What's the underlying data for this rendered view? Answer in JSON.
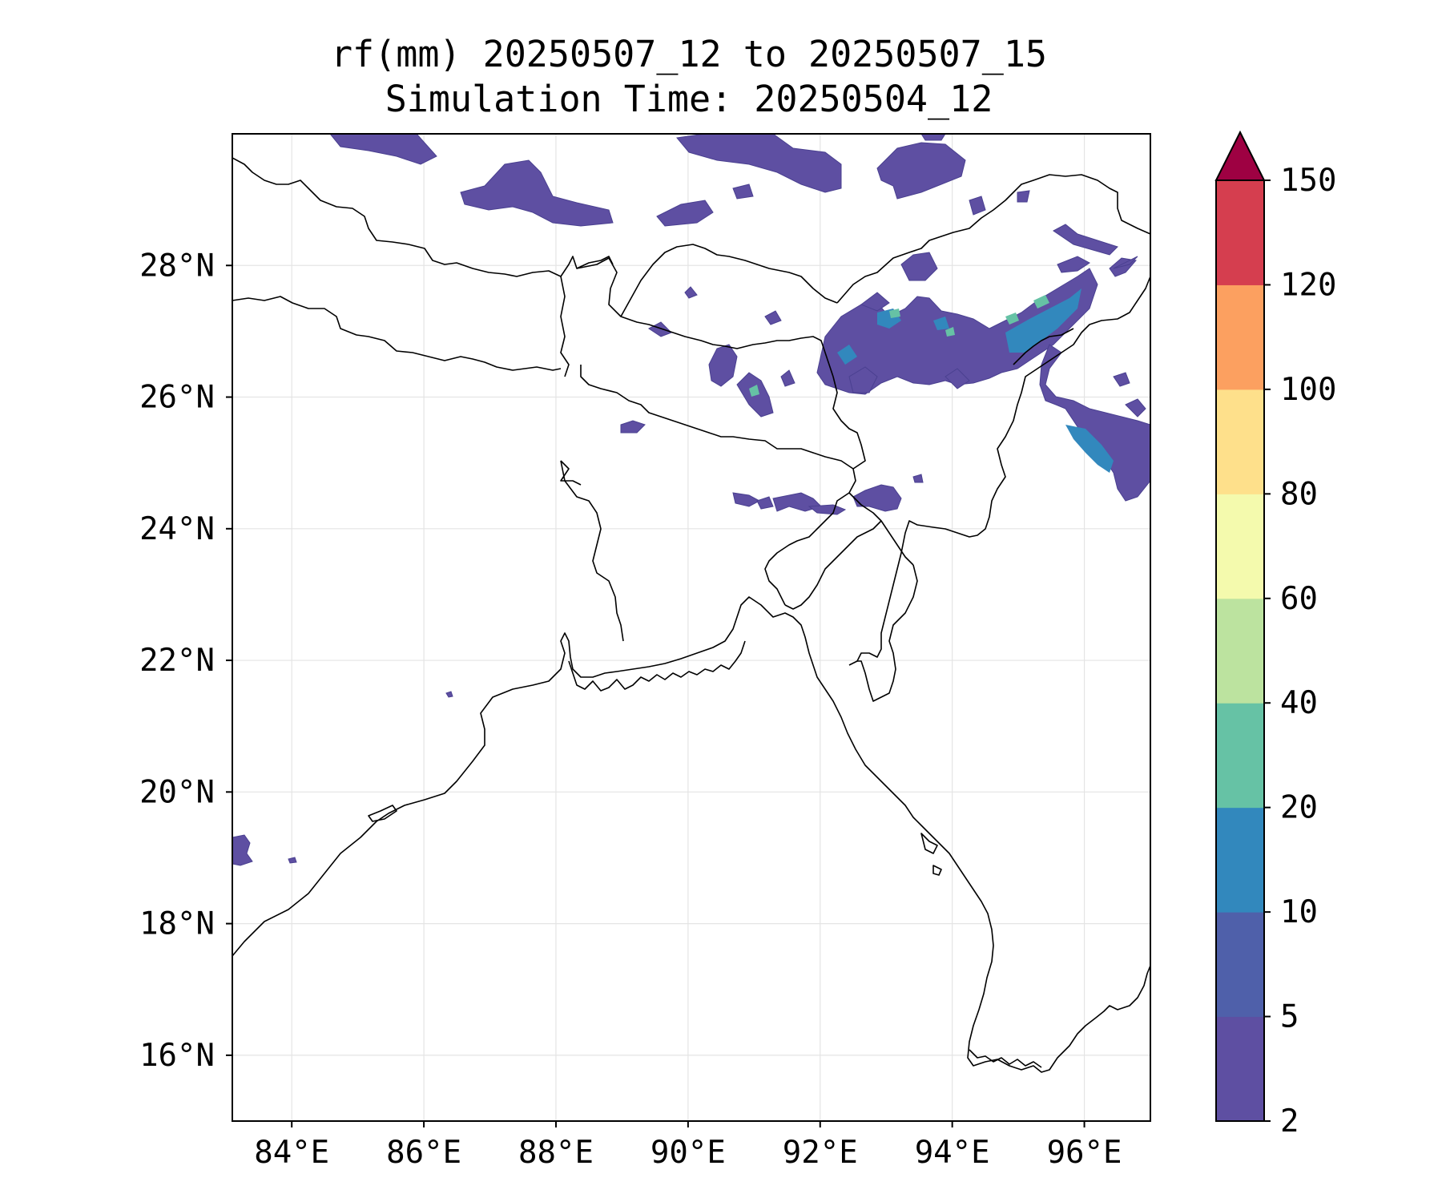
{
  "title": {
    "line1": "rf(mm) 20250507_12 to 20250507_15",
    "line2": "Simulation Time: 20250504_12"
  },
  "map": {
    "lon_range": [
      83.1,
      97.0
    ],
    "lat_range": [
      15.0,
      30.0
    ],
    "lon_ticks": [
      {
        "value": 84,
        "label": "84°E"
      },
      {
        "value": 86,
        "label": "86°E"
      },
      {
        "value": 88,
        "label": "88°E"
      },
      {
        "value": 90,
        "label": "90°E"
      },
      {
        "value": 92,
        "label": "92°E"
      },
      {
        "value": 94,
        "label": "94°E"
      },
      {
        "value": 96,
        "label": "96°E"
      }
    ],
    "lat_ticks": [
      {
        "value": 16,
        "label": "16°N"
      },
      {
        "value": 18,
        "label": "18°N"
      },
      {
        "value": 20,
        "label": "20°N"
      },
      {
        "value": 22,
        "label": "22°N"
      },
      {
        "value": 24,
        "label": "24°N"
      },
      {
        "value": 26,
        "label": "26°N"
      },
      {
        "value": 28,
        "label": "28°N"
      }
    ],
    "gridlines": true
  },
  "colorbar": {
    "levels": [
      "2",
      "5",
      "10",
      "20",
      "40",
      "60",
      "80",
      "100",
      "120",
      "150"
    ],
    "colors": [
      "#5e4fa2",
      "#4f60aa",
      "#3288bd",
      "#66c2a5",
      "#bce39f",
      "#f4faad",
      "#fee08b",
      "#fca060",
      "#d53e4f"
    ],
    "extend_color": "#9e0142",
    "extend": "max"
  }
}
